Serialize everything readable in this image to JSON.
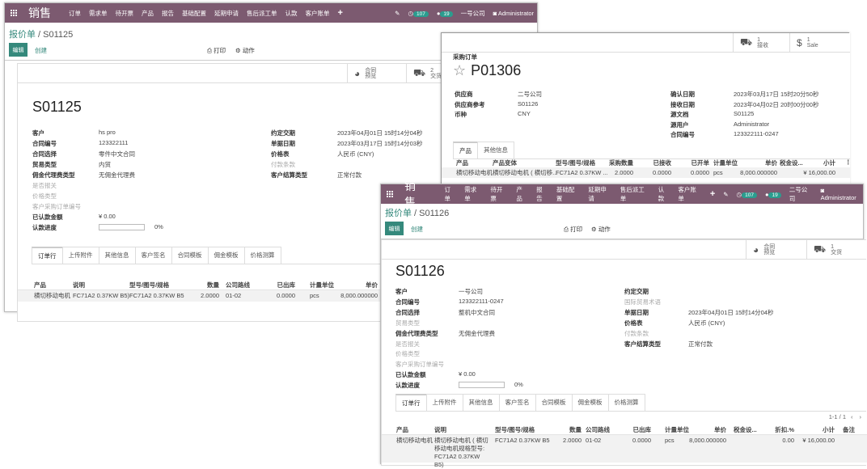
{
  "colors": {
    "navbar": "#7c5a70",
    "accent": "#35897c"
  },
  "windows": [
    {
      "id": "a",
      "navbar": {
        "app": "销售",
        "menus": [
          "订单",
          "需求单",
          "待开票",
          "产品",
          "报告",
          "基础配置",
          "延期申请",
          "售后派工单",
          "认款",
          "客户账单",
          "+"
        ],
        "activity_count": "107",
        "message_count": "19",
        "company": "一号公司",
        "user": "Administrator"
      },
      "breadcrumb": {
        "parent": "报价单",
        "current": "S01125"
      },
      "actions": {
        "edit": "编辑",
        "create": "创建",
        "print": "打印",
        "action": "动作"
      },
      "stat_buttons": [
        {
          "icon": "globe-icon",
          "count": "",
          "label": "合同\n预览"
        },
        {
          "icon": "truck-icon",
          "count": "2",
          "label": "交货"
        }
      ],
      "title": "S01125",
      "left_fields": [
        {
          "label": "客户",
          "value": "hs pro",
          "link": true
        },
        {
          "label": "合同编号",
          "value": "123322111"
        },
        {
          "label": "合同选择",
          "value": "零件中文合同"
        },
        {
          "label": "贸易类型",
          "value": "内贸"
        },
        {
          "label": "佣金代理费类型",
          "value": "无佣金代理费"
        },
        {
          "label": "是否报关",
          "value": "",
          "muted": true
        },
        {
          "label": "价格类型",
          "value": "",
          "muted": true
        },
        {
          "label": "客户采购订单编号",
          "value": "",
          "muted": true
        },
        {
          "label": "已认款金额",
          "value": "¥ 0.00"
        },
        {
          "label": "认款进度",
          "value": "0%",
          "progress": 0
        }
      ],
      "right_fields": [
        {
          "label": "约定交期",
          "value": "2023年04月01日 15时14分04秒"
        },
        {
          "label": "单据日期",
          "value": "2023年03月17日 15时14分03秒"
        },
        {
          "label": "价格表",
          "value": "人民币 (CNY)"
        },
        {
          "label": "付款条款",
          "value": "",
          "muted": true
        },
        {
          "label": "客户结算类型",
          "value": "正常付款"
        }
      ],
      "tabs": [
        "订单行",
        "上传附件",
        "其他信息",
        "客户签名",
        "合同模板",
        "佣金模板",
        "价格测算"
      ],
      "active_tab": 0,
      "table": {
        "headers": [
          "产品",
          "说明",
          "型号/图号/规格",
          "数量",
          "公司路线",
          "已出库",
          "计量单位",
          "单价"
        ],
        "rows": [
          [
            "横切移动电机",
            "FC71A2 0.37KW B5)",
            "FC71A2 0.37KW B5",
            "2.0000",
            "01-02",
            "0.0000",
            "pcs",
            "8,000.000000"
          ]
        ]
      }
    },
    {
      "id": "b",
      "stat_buttons": [
        {
          "icon": "truck-icon",
          "count": "1",
          "label": "接收"
        },
        {
          "icon": "dollar-icon",
          "count": "1",
          "label": "Sale"
        }
      ],
      "subtitle": "采购订单",
      "title": "P01306",
      "left_fields": [
        {
          "label": "供应商",
          "value": "二号公司",
          "link": true
        },
        {
          "label": "供应商参考",
          "value": "S01126"
        },
        {
          "label": "币种",
          "value": "CNY",
          "link": true
        }
      ],
      "right_fields": [
        {
          "label": "确认日期",
          "value": "2023年03月17日 15时20分50秒"
        },
        {
          "label": "接收日期",
          "value": "2023年04月02日 20时00分00秒"
        },
        {
          "label": "源文档",
          "value": "S01125"
        },
        {
          "label": "源用户",
          "value": "Administrator",
          "link": true
        },
        {
          "label": "合同编号",
          "value": "123322111-0247"
        }
      ],
      "tabs": [
        "产品",
        "其他信息"
      ],
      "active_tab": 0,
      "table": {
        "headers": [
          "产品",
          "产品变体",
          "型号/图号/规格",
          "采购数量",
          "已接收",
          "已开单",
          "计量单位",
          "单价",
          "税金设...",
          "小计",
          "⋮"
        ],
        "rows": [
          [
            "横切移动电机",
            "横切移动电机 ( 横切移...",
            "FC71A2 0.37KW ...",
            "2.0000",
            "0.0000",
            "0.0000",
            "pcs",
            "8,000.000000",
            "",
            "¥ 16,000.00",
            ""
          ]
        ]
      }
    },
    {
      "id": "c",
      "navbar": {
        "app": "销售",
        "menus": [
          "订单",
          "需求单",
          "待开票",
          "产品",
          "报告",
          "基础配置",
          "延期申请",
          "售后派工单",
          "认款",
          "客户账单",
          "+"
        ],
        "activity_count": "107",
        "message_count": "19",
        "company": "二号公司",
        "user": "Administrator"
      },
      "breadcrumb": {
        "parent": "报价单",
        "current": "S01126"
      },
      "actions": {
        "edit": "编辑",
        "create": "创建",
        "print": "打印",
        "action": "动作"
      },
      "stat_buttons": [
        {
          "icon": "globe-icon",
          "count": "",
          "label": "合同\n预览"
        },
        {
          "icon": "truck-icon",
          "count": "1",
          "label": "交货"
        }
      ],
      "title": "S01126",
      "left_fields": [
        {
          "label": "客户",
          "value": "一号公司",
          "link": true
        },
        {
          "label": "合同编号",
          "value": "123322111-0247"
        },
        {
          "label": "合同选择",
          "value": "整机中文合同"
        },
        {
          "label": "贸易类型",
          "value": "",
          "muted": true
        },
        {
          "label": "佣金代理费类型",
          "value": "无佣金代理费"
        },
        {
          "label": "是否报关",
          "value": "",
          "muted": true
        },
        {
          "label": "价格类型",
          "value": "",
          "muted": true
        },
        {
          "label": "客户采购订单编号",
          "value": "",
          "muted": true
        },
        {
          "label": "已认款金额",
          "value": "¥ 0.00"
        },
        {
          "label": "认款进度",
          "value": "0%",
          "progress": 0
        }
      ],
      "right_fields": [
        {
          "label": "约定交期",
          "value": ""
        },
        {
          "label": "国际贸易术语",
          "value": "",
          "muted": true
        },
        {
          "label": "单据日期",
          "value": "2023年04月01日 15时14分04秒"
        },
        {
          "label": "价格表",
          "value": "人民币 (CNY)"
        },
        {
          "label": "付款条款",
          "value": "",
          "muted": true
        },
        {
          "label": "客户结算类型",
          "value": "正常付款"
        }
      ],
      "tabs": [
        "订单行",
        "上传附件",
        "其他信息",
        "客户签名",
        "合同模板",
        "佣金模板",
        "价格测算"
      ],
      "active_tab": 0,
      "pager": "1-1 / 1",
      "table": {
        "headers": [
          "产品",
          "说明",
          "型号/图号/规格",
          "数量",
          "公司路线",
          "已出库",
          "计量单位",
          "单价",
          "税金设...",
          "折扣.%",
          "小计",
          "备注"
        ],
        "rows": [
          [
            "横切移动电机",
            "横切移动电机 ( 横切移动电机规格型号: FC71A2 0.37KW B5)",
            "FC71A2 0.37KW B5",
            "2.0000",
            "01-02",
            "0.0000",
            "pcs",
            "8,000.000000",
            "",
            "0.00",
            "¥ 16,000.00",
            ""
          ]
        ]
      }
    }
  ]
}
